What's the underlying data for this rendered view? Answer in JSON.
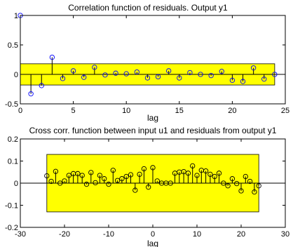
{
  "figure": {
    "background": "#ffffff",
    "band_color": "#ffff00",
    "stem_color": "#000000",
    "marker_color": "#0000ff"
  },
  "chart_data": [
    {
      "type": "stem",
      "title": "Correlation function of residuals. Output y1",
      "xlabel": "lag",
      "ylabel": "",
      "xlim": [
        0,
        25
      ],
      "ylim": [
        -0.5,
        1
      ],
      "xticks": [
        0,
        5,
        10,
        15,
        20,
        25
      ],
      "yticks": [
        -0.5,
        0,
        0.5,
        1
      ],
      "ytick_labels": [
        "-0.5",
        "0",
        "0.5",
        "1"
      ],
      "confidence_band": {
        "x": [
          0,
          24
        ],
        "y": [
          -0.18,
          0.18
        ]
      },
      "x": [
        0,
        1,
        2,
        3,
        4,
        5,
        6,
        7,
        8,
        9,
        10,
        11,
        12,
        13,
        14,
        15,
        16,
        17,
        18,
        19,
        20,
        21,
        22,
        23,
        24
      ],
      "y": [
        1.0,
        -0.33,
        -0.19,
        0.29,
        -0.07,
        0.06,
        -0.05,
        0.12,
        -0.01,
        0.02,
        0.01,
        0.04,
        -0.06,
        -0.04,
        0.06,
        -0.06,
        0.03,
        0.0,
        -0.02,
        0.05,
        -0.1,
        -0.12,
        0.11,
        -0.08,
        0.0
      ]
    },
    {
      "type": "stem",
      "title": "Cross corr. function between input u1 and residuals from output y1",
      "xlabel": "lag",
      "ylabel": "",
      "xlim": [
        -30,
        30
      ],
      "ylim": [
        -0.2,
        0.2
      ],
      "xticks": [
        -30,
        -20,
        -10,
        0,
        10,
        20,
        30
      ],
      "yticks": [
        -0.2,
        -0.1,
        0,
        0.1,
        0.2
      ],
      "ytick_labels": [
        "-0.2",
        "-0.1",
        "0",
        "0.1",
        "0.2"
      ],
      "confidence_band": {
        "x": [
          -24,
          24
        ],
        "y": [
          -0.13,
          0.13
        ]
      },
      "x": [
        -24,
        -23,
        -22,
        -21,
        -20,
        -19,
        -18,
        -17,
        -16,
        -15,
        -14,
        -13,
        -12,
        -11,
        -10,
        -9,
        -8,
        -7,
        -6,
        -5,
        -4,
        -3,
        -2,
        -1,
        0,
        1,
        2,
        3,
        4,
        5,
        6,
        7,
        8,
        9,
        10,
        11,
        12,
        13,
        14,
        15,
        16,
        17,
        18,
        19,
        20,
        21,
        22,
        23,
        24
      ],
      "y": [
        0.033,
        0.008,
        0.053,
        0.0,
        0.01,
        0.035,
        0.043,
        0.043,
        0.035,
        -0.005,
        0.048,
        0.002,
        0.035,
        0.02,
        -0.005,
        0.058,
        0.012,
        0.02,
        0.03,
        0.038,
        -0.032,
        0.04,
        0.065,
        -0.018,
        0.07,
        0.01,
        0.0,
        0.0,
        0.0,
        0.045,
        0.05,
        0.052,
        0.045,
        0.078,
        0.035,
        0.058,
        0.055,
        0.04,
        0.03,
        0.045,
        0.0,
        -0.012,
        0.02,
        -0.002,
        -0.035,
        0.03,
        0.008,
        -0.04,
        -0.012
      ]
    }
  ]
}
